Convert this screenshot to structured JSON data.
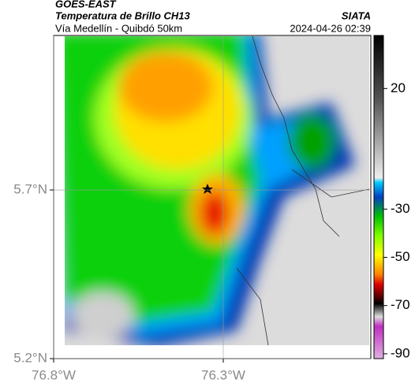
{
  "header": {
    "source": "GOES-EAST",
    "title": "Temperatura de Brillo CH13",
    "agency": "SIATA",
    "subtitle": "Vía Medellín - Quibdó 50km",
    "timestamp": "2024-04-26 02:39"
  },
  "map": {
    "xlim": [
      -76.8,
      -75.865
    ],
    "ylim": [
      5.2,
      6.158
    ],
    "xticks": [
      {
        "value": -76.8,
        "label": "76.8°W"
      },
      {
        "value": -76.3,
        "label": "76.3°W"
      }
    ],
    "yticks": [
      {
        "value": 5.2,
        "label": "5.2°N"
      },
      {
        "value": 5.7,
        "label": "5.7°N"
      }
    ],
    "colorbar": {
      "lim": [
        -92,
        42
      ],
      "ticks": [
        20,
        -30,
        -50,
        -70,
        -90
      ]
    }
  }
}
